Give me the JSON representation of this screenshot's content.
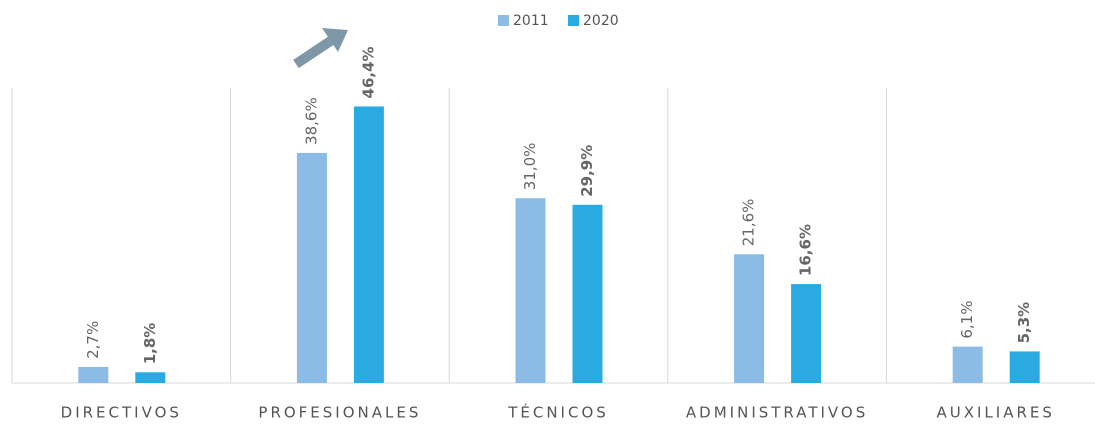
{
  "chart_data": {
    "type": "bar",
    "categories": [
      "DIRECTIVOS",
      "PROFESIONALES",
      "TÉCNICOS",
      "ADMINISTRATIVOS",
      "AUXILIARES"
    ],
    "series": [
      {
        "name": "2011",
        "color": "#8cbbe6",
        "values": [
          2.7,
          38.6,
          31.0,
          21.6,
          6.1
        ],
        "value_labels": [
          "2,7%",
          "38,6%",
          "31,0%",
          "21,6%",
          "6,1%"
        ]
      },
      {
        "name": "2020",
        "color": "#29abe2",
        "values": [
          1.8,
          46.4,
          29.9,
          16.6,
          5.3
        ],
        "value_labels": [
          "1,8%",
          "46,4%",
          "29,9%",
          "16,6%",
          "5,3%"
        ]
      }
    ],
    "ylim": [
      0,
      50
    ],
    "legend": "top"
  }
}
